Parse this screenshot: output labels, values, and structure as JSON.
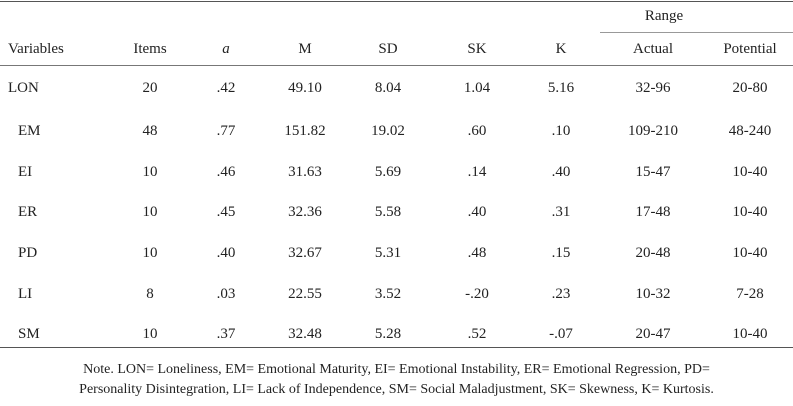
{
  "table": {
    "range_group_label": "Range",
    "headers": [
      "Variables",
      "Items",
      "a",
      "M",
      "SD",
      "SK",
      "K",
      "Actual",
      "Potential"
    ],
    "rows": [
      [
        "LON",
        "20",
        ".42",
        "49.10",
        "8.04",
        "1.04",
        "5.16",
        "32-96",
        "20-80"
      ],
      [
        "EM",
        "48",
        ".77",
        "151.82",
        "19.02",
        ".60",
        ".10",
        "109-210",
        "48-240"
      ],
      [
        "EI",
        "10",
        ".46",
        "31.63",
        "5.69",
        ".14",
        ".40",
        "15-47",
        "10-40"
      ],
      [
        "ER",
        "10",
        ".45",
        "32.36",
        "5.58",
        ".40",
        ".31",
        "17-48",
        "10-40"
      ],
      [
        "PD",
        "10",
        ".40",
        "32.67",
        "5.31",
        ".48",
        ".15",
        "20-48",
        "10-40"
      ],
      [
        "LI",
        "8",
        ".03",
        "22.55",
        "3.52",
        "-.20",
        ".23",
        "10-32",
        "7-28"
      ],
      [
        "SM",
        "10",
        ".37",
        "32.48",
        "5.28",
        ".52",
        "-.07",
        "20-47",
        "10-40"
      ]
    ]
  },
  "note": {
    "line1": "Note. LON= Loneliness, EM= Emotional Maturity, EI= Emotional Instability, ER= Emotional Regression, PD=",
    "line2": "Personality Disintegration, LI= Lack of Independence, SM= Social Maladjustment, SK= Skewness, K= Kurtosis."
  }
}
